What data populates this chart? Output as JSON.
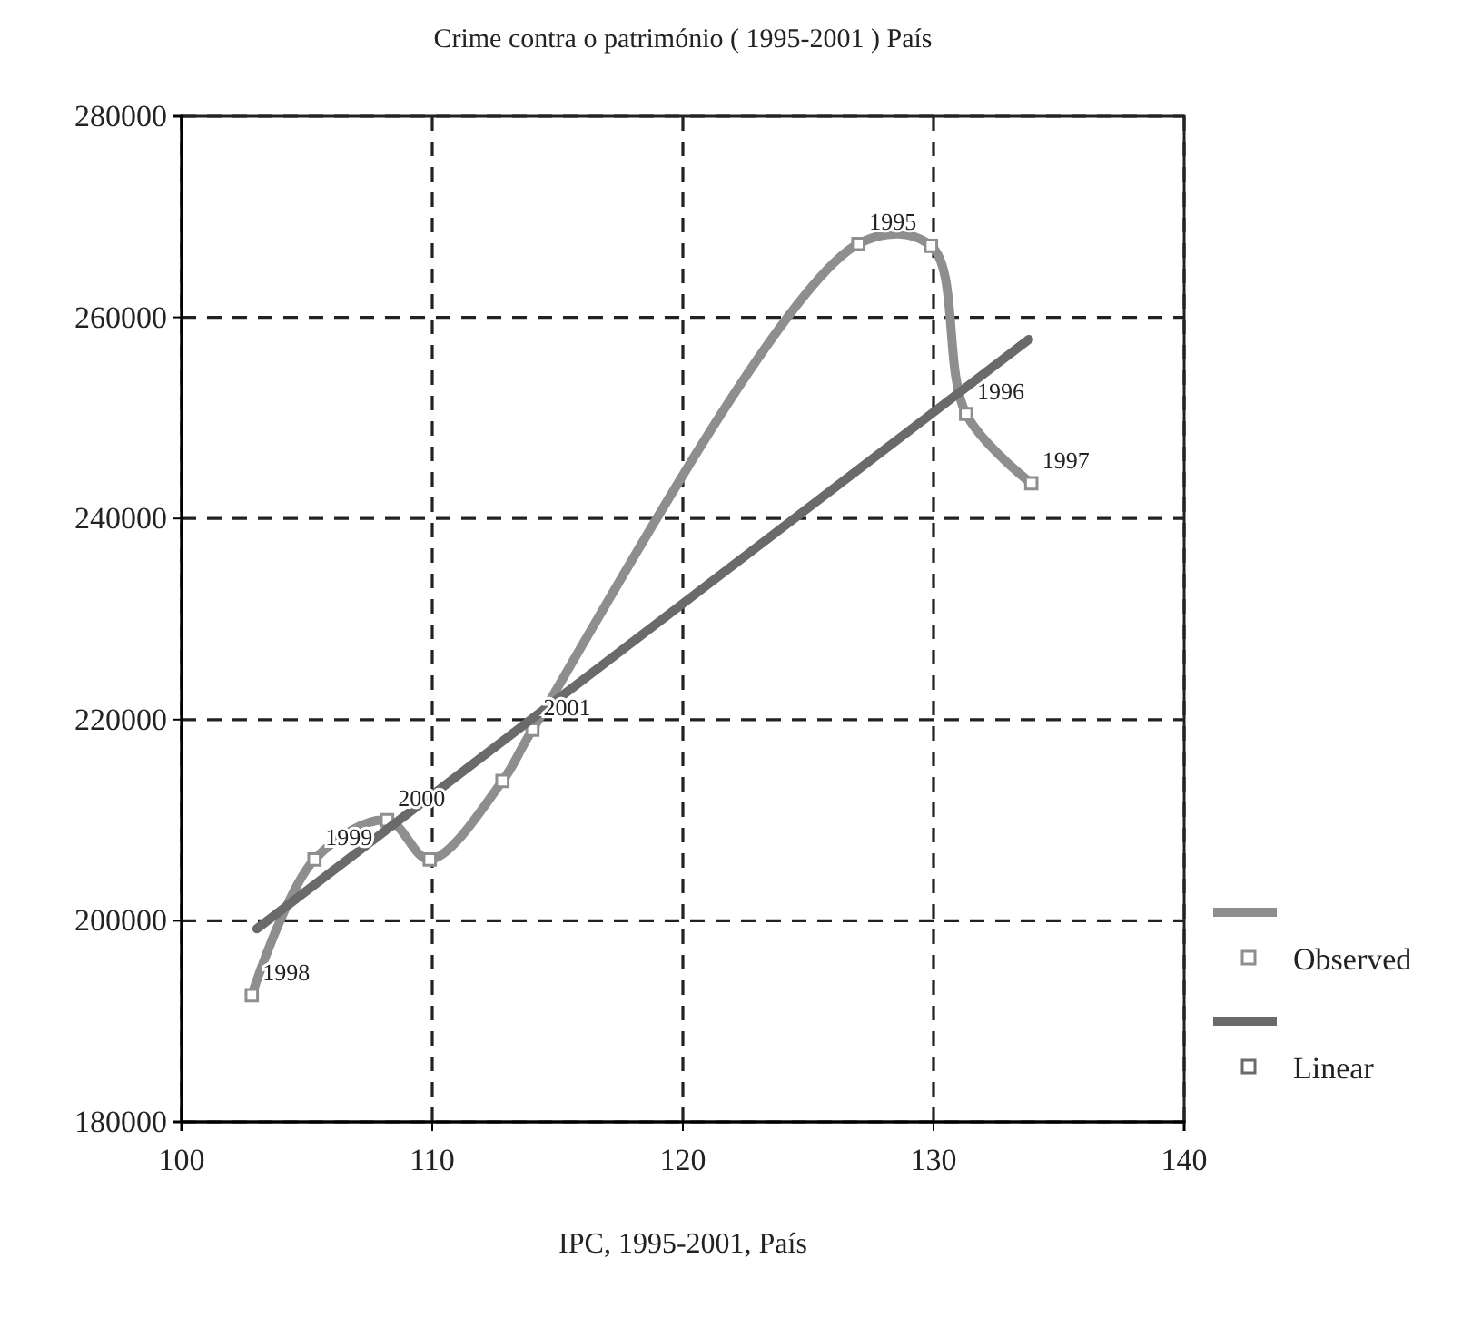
{
  "chart_data": {
    "type": "line",
    "title": "Crime contra o património ( 1995-2001 ) País",
    "xlabel": "IPC, 1995-2001, País",
    "xlim": [
      100,
      140
    ],
    "xticks": [
      100,
      110,
      120,
      130,
      140
    ],
    "ylim": [
      180000,
      280000
    ],
    "yticks": [
      180000,
      200000,
      220000,
      240000,
      260000,
      280000
    ],
    "grid": true,
    "legend": "bottom right",
    "series": [
      {
        "name": "Observed",
        "color": "#8e8e8e",
        "marker": "square",
        "x": [
          102.8,
          105.3,
          108.2,
          109.9,
          112.8,
          114.0,
          127.0,
          129.9,
          131.3,
          133.9
        ],
        "values": [
          192600,
          206100,
          210000,
          206100,
          213900,
          219000,
          267300,
          267100,
          250400,
          243500
        ]
      },
      {
        "name": "Linear",
        "color": "#6a6a6a",
        "marker": "none",
        "x": [
          103.0,
          133.8
        ],
        "values": [
          199200,
          257800
        ]
      }
    ],
    "annotations": [
      {
        "text": "1998",
        "x": 102.8,
        "y": 192600
      },
      {
        "text": "1999",
        "x": 105.3,
        "y": 206100
      },
      {
        "text": "2000",
        "x": 108.2,
        "y": 210000
      },
      {
        "text": "2001",
        "x": 114.0,
        "y": 219000
      },
      {
        "text": "1995",
        "x": 127.0,
        "y": 267300
      },
      {
        "text": "1996",
        "x": 131.3,
        "y": 250400
      },
      {
        "text": "1997",
        "x": 133.9,
        "y": 243500
      }
    ]
  }
}
